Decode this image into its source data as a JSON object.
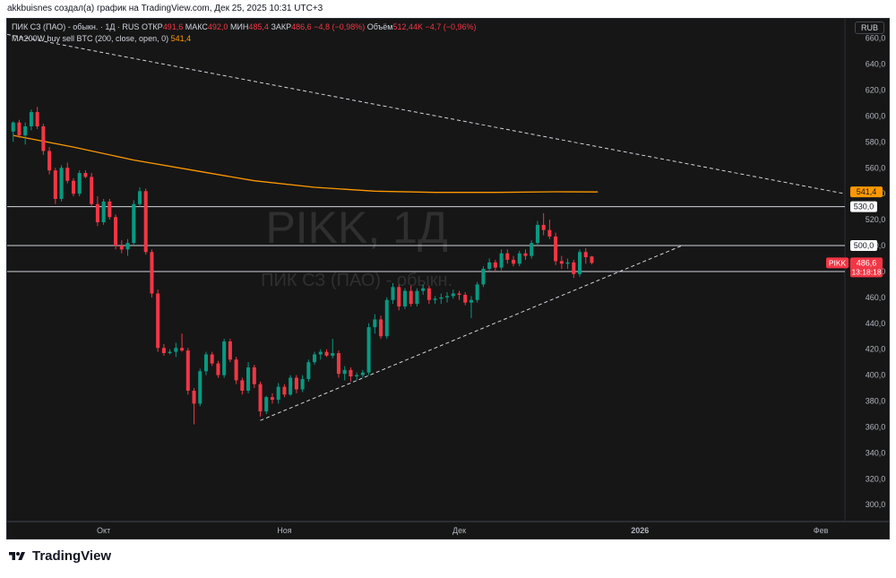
{
  "caption": "akkbuisnes создал(а) график на TradingView.com, Дек 25, 2025 10:31 UTC+3",
  "legend": {
    "line1_prefix": "ПИК СЗ (ПАО) - обыкн. · 1Д · RUS",
    "open_label": "ОТКР",
    "open_value": "491,6",
    "high_label": "МАКС",
    "high_value": "492,0",
    "low_label": "МИН",
    "low_value": "485,4",
    "close_label": "ЗАКР",
    "close_value": "486,6",
    "change_value": "−4,8 (−0,98%)",
    "volume_label": "Объём",
    "volume_value": "512,44K",
    "volume_change": "−4,7 (−0,96%)",
    "ma_label": "MA200W buy sell BTC (200, close, open, 0)",
    "ma_value": "541,4"
  },
  "currency": "RUB",
  "footer_brand": "TradingView",
  "icons": {
    "logo": "tradingview-logo-icon"
  },
  "colors": {
    "up": "#089981",
    "down": "#f23645",
    "ma": "#ff9800",
    "background": "#161616",
    "grid": "#2a2e39",
    "text": "#b2b5be"
  },
  "chart_data": {
    "type": "candlestick",
    "watermark_symbol": "PIKK, 1Д",
    "watermark_name": "ПИК СЗ (ПАО) - обыкн.",
    "y_ticks": [
      300,
      320,
      340,
      360,
      380,
      400,
      420,
      440,
      460,
      480,
      500,
      520,
      540,
      560,
      580,
      600,
      620,
      640,
      660
    ],
    "y_tick_labels": [
      "300,0",
      "320,0",
      "340,0",
      "360,0",
      "380,0",
      "400,0",
      "420,0",
      "440,0",
      "460,0",
      "480,0",
      "500,0",
      "520,0",
      "540,0",
      "560,0",
      "580,0",
      "600,0",
      "620,0",
      "640,0",
      "660,0"
    ],
    "ylim": [
      287,
      675
    ],
    "x_labels": [
      {
        "label": "Окт",
        "index": 15
      },
      {
        "label": "Ноя",
        "index": 45
      },
      {
        "label": "Дек",
        "index": 74
      },
      {
        "label": "2026",
        "index": 104
      },
      {
        "label": "Фев",
        "index": 134
      }
    ],
    "x_range": [
      -1,
      138
    ],
    "candles": [
      {
        "o": 588,
        "h": 596,
        "l": 580,
        "c": 595
      },
      {
        "o": 595,
        "h": 597,
        "l": 583,
        "c": 585
      },
      {
        "o": 585,
        "h": 595,
        "l": 578,
        "c": 592
      },
      {
        "o": 592,
        "h": 605,
        "l": 589,
        "c": 603
      },
      {
        "o": 603,
        "h": 607,
        "l": 590,
        "c": 592
      },
      {
        "o": 592,
        "h": 594,
        "l": 570,
        "c": 573
      },
      {
        "o": 573,
        "h": 576,
        "l": 555,
        "c": 558
      },
      {
        "o": 558,
        "h": 560,
        "l": 532,
        "c": 536
      },
      {
        "o": 536,
        "h": 562,
        "l": 534,
        "c": 560
      },
      {
        "o": 560,
        "h": 564,
        "l": 548,
        "c": 550
      },
      {
        "o": 550,
        "h": 552,
        "l": 538,
        "c": 540
      },
      {
        "o": 540,
        "h": 558,
        "l": 538,
        "c": 556
      },
      {
        "o": 556,
        "h": 558,
        "l": 552,
        "c": 553
      },
      {
        "o": 553,
        "h": 556,
        "l": 530,
        "c": 532
      },
      {
        "o": 532,
        "h": 538,
        "l": 515,
        "c": 518
      },
      {
        "o": 518,
        "h": 536,
        "l": 516,
        "c": 534
      },
      {
        "o": 534,
        "h": 536,
        "l": 520,
        "c": 522
      },
      {
        "o": 522,
        "h": 524,
        "l": 497,
        "c": 500
      },
      {
        "o": 500,
        "h": 504,
        "l": 494,
        "c": 497
      },
      {
        "o": 497,
        "h": 505,
        "l": 492,
        "c": 502
      },
      {
        "o": 502,
        "h": 535,
        "l": 500,
        "c": 532
      },
      {
        "o": 532,
        "h": 545,
        "l": 530,
        "c": 542
      },
      {
        "o": 542,
        "h": 544,
        "l": 493,
        "c": 495
      },
      {
        "o": 495,
        "h": 497,
        "l": 460,
        "c": 463
      },
      {
        "o": 463,
        "h": 466,
        "l": 418,
        "c": 421
      },
      {
        "o": 421,
        "h": 424,
        "l": 415,
        "c": 417
      },
      {
        "o": 417,
        "h": 420,
        "l": 416,
        "c": 418
      },
      {
        "o": 418,
        "h": 425,
        "l": 414,
        "c": 421
      },
      {
        "o": 421,
        "h": 432,
        "l": 418,
        "c": 419
      },
      {
        "o": 419,
        "h": 421,
        "l": 385,
        "c": 388
      },
      {
        "o": 388,
        "h": 390,
        "l": 362,
        "c": 378
      },
      {
        "o": 378,
        "h": 405,
        "l": 376,
        "c": 403
      },
      {
        "o": 403,
        "h": 418,
        "l": 400,
        "c": 416
      },
      {
        "o": 416,
        "h": 418,
        "l": 407,
        "c": 409
      },
      {
        "o": 409,
        "h": 411,
        "l": 398,
        "c": 400
      },
      {
        "o": 400,
        "h": 428,
        "l": 398,
        "c": 426
      },
      {
        "o": 426,
        "h": 428,
        "l": 410,
        "c": 412
      },
      {
        "o": 412,
        "h": 414,
        "l": 393,
        "c": 396
      },
      {
        "o": 396,
        "h": 398,
        "l": 385,
        "c": 388
      },
      {
        "o": 388,
        "h": 410,
        "l": 386,
        "c": 406
      },
      {
        "o": 406,
        "h": 408,
        "l": 390,
        "c": 393
      },
      {
        "o": 393,
        "h": 395,
        "l": 368,
        "c": 372
      },
      {
        "o": 372,
        "h": 384,
        "l": 370,
        "c": 383
      },
      {
        "o": 383,
        "h": 386,
        "l": 378,
        "c": 381
      },
      {
        "o": 381,
        "h": 394,
        "l": 378,
        "c": 391
      },
      {
        "o": 391,
        "h": 393,
        "l": 383,
        "c": 385
      },
      {
        "o": 385,
        "h": 400,
        "l": 384,
        "c": 398
      },
      {
        "o": 398,
        "h": 400,
        "l": 386,
        "c": 389
      },
      {
        "o": 389,
        "h": 400,
        "l": 387,
        "c": 397
      },
      {
        "o": 397,
        "h": 412,
        "l": 395,
        "c": 410
      },
      {
        "o": 410,
        "h": 418,
        "l": 408,
        "c": 416
      },
      {
        "o": 416,
        "h": 420,
        "l": 412,
        "c": 418
      },
      {
        "o": 418,
        "h": 420,
        "l": 414,
        "c": 415
      },
      {
        "o": 415,
        "h": 428,
        "l": 413,
        "c": 417
      },
      {
        "o": 417,
        "h": 419,
        "l": 398,
        "c": 401
      },
      {
        "o": 401,
        "h": 407,
        "l": 396,
        "c": 404
      },
      {
        "o": 404,
        "h": 406,
        "l": 395,
        "c": 399
      },
      {
        "o": 399,
        "h": 402,
        "l": 396,
        "c": 400
      },
      {
        "o": 400,
        "h": 404,
        "l": 398,
        "c": 402
      },
      {
        "o": 402,
        "h": 440,
        "l": 400,
        "c": 437
      },
      {
        "o": 437,
        "h": 447,
        "l": 432,
        "c": 443
      },
      {
        "o": 443,
        "h": 446,
        "l": 428,
        "c": 430
      },
      {
        "o": 430,
        "h": 460,
        "l": 428,
        "c": 458
      },
      {
        "o": 458,
        "h": 471,
        "l": 455,
        "c": 468
      },
      {
        "o": 468,
        "h": 470,
        "l": 450,
        "c": 453
      },
      {
        "o": 453,
        "h": 467,
        "l": 451,
        "c": 465
      },
      {
        "o": 465,
        "h": 469,
        "l": 453,
        "c": 455
      },
      {
        "o": 455,
        "h": 467,
        "l": 453,
        "c": 465
      },
      {
        "o": 465,
        "h": 470,
        "l": 462,
        "c": 467
      },
      {
        "o": 467,
        "h": 469,
        "l": 455,
        "c": 458
      },
      {
        "o": 458,
        "h": 461,
        "l": 455,
        "c": 459
      },
      {
        "o": 459,
        "h": 463,
        "l": 455,
        "c": 460
      },
      {
        "o": 460,
        "h": 464,
        "l": 456,
        "c": 461
      },
      {
        "o": 461,
        "h": 466,
        "l": 459,
        "c": 463
      },
      {
        "o": 463,
        "h": 465,
        "l": 458,
        "c": 462
      },
      {
        "o": 462,
        "h": 464,
        "l": 454,
        "c": 456
      },
      {
        "o": 456,
        "h": 461,
        "l": 444,
        "c": 458
      },
      {
        "o": 458,
        "h": 472,
        "l": 456,
        "c": 470
      },
      {
        "o": 470,
        "h": 484,
        "l": 468,
        "c": 482
      },
      {
        "o": 482,
        "h": 490,
        "l": 480,
        "c": 487
      },
      {
        "o": 487,
        "h": 489,
        "l": 480,
        "c": 483
      },
      {
        "o": 483,
        "h": 497,
        "l": 481,
        "c": 494
      },
      {
        "o": 494,
        "h": 497,
        "l": 486,
        "c": 489
      },
      {
        "o": 489,
        "h": 492,
        "l": 484,
        "c": 486
      },
      {
        "o": 486,
        "h": 496,
        "l": 484,
        "c": 494
      },
      {
        "o": 494,
        "h": 497,
        "l": 489,
        "c": 492
      },
      {
        "o": 492,
        "h": 504,
        "l": 490,
        "c": 502
      },
      {
        "o": 502,
        "h": 519,
        "l": 500,
        "c": 516
      },
      {
        "o": 516,
        "h": 525,
        "l": 508,
        "c": 512
      },
      {
        "o": 512,
        "h": 520,
        "l": 505,
        "c": 507
      },
      {
        "o": 507,
        "h": 510,
        "l": 485,
        "c": 488
      },
      {
        "o": 488,
        "h": 492,
        "l": 482,
        "c": 486
      },
      {
        "o": 486,
        "h": 490,
        "l": 482,
        "c": 487
      },
      {
        "o": 487,
        "h": 489,
        "l": 475,
        "c": 478
      },
      {
        "o": 478,
        "h": 497,
        "l": 476,
        "c": 495
      },
      {
        "o": 495,
        "h": 498,
        "l": 486,
        "c": 491
      },
      {
        "o": 491.6,
        "h": 492,
        "l": 485.4,
        "c": 486.6
      }
    ],
    "ma_line": [
      {
        "i": 0,
        "v": 585
      },
      {
        "i": 10,
        "v": 576
      },
      {
        "i": 20,
        "v": 566
      },
      {
        "i": 30,
        "v": 558
      },
      {
        "i": 40,
        "v": 550
      },
      {
        "i": 50,
        "v": 545
      },
      {
        "i": 60,
        "v": 542
      },
      {
        "i": 70,
        "v": 541
      },
      {
        "i": 80,
        "v": 541
      },
      {
        "i": 90,
        "v": 541.5
      },
      {
        "i": 97,
        "v": 541.4
      }
    ],
    "resistance_trendline": {
      "x1": -1,
      "y1": 663,
      "x2": 138,
      "y2": 540
    },
    "support_trendline": {
      "x1": 41,
      "y1": 365,
      "x2": 111,
      "y2": 500
    },
    "horizontal_levels": [
      {
        "value": 530,
        "label": "530,0"
      },
      {
        "value": 500,
        "label": "500,0"
      },
      {
        "value": 480,
        "label": "480,0"
      }
    ],
    "price_tags": [
      {
        "value": 541.4,
        "label": "541,4",
        "color": "#ff9800",
        "text_color": "#131722"
      },
      {
        "value": 486.6,
        "label": "486,6",
        "sub_label": "13:18:18",
        "color": "#f23645",
        "text_color": "#ffffff",
        "symbol": "PIKK"
      }
    ]
  }
}
